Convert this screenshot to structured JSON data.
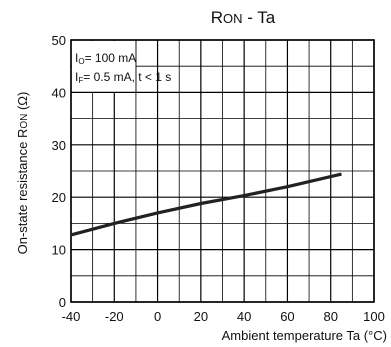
{
  "chart_data": {
    "type": "line",
    "title": {
      "main": "R",
      "sub": "ON",
      "suffix": " - Ta"
    },
    "xlabel": "Ambient temperature Ta (°C)",
    "ylabel": {
      "prefix": "On-state resistance R",
      "sub": "ON",
      "suffix": " (Ω)"
    },
    "xlim": [
      -40,
      100
    ],
    "ylim": [
      0,
      50
    ],
    "x_major_ticks": [
      -40,
      -20,
      0,
      20,
      40,
      60,
      80,
      100
    ],
    "y_major_ticks": [
      0,
      10,
      20,
      30,
      40,
      50
    ],
    "x_minor_step": 10,
    "y_minor_step": 5,
    "grid": true,
    "annotations": [
      {
        "prefix": "I",
        "sub": "O",
        "suffix": "= 100 mA"
      },
      {
        "prefix": "I",
        "sub": "F",
        "suffix": "= 0.5 mA, t < 1 s"
      }
    ],
    "series": [
      {
        "x": [
          -40,
          -20,
          0,
          20,
          40,
          60,
          85
        ],
        "y": [
          12.8,
          15.0,
          17.0,
          18.8,
          20.3,
          22.0,
          24.4
        ]
      }
    ]
  },
  "colors": {
    "line": "#222222",
    "grid": "#000000",
    "background": "#ffffff"
  }
}
